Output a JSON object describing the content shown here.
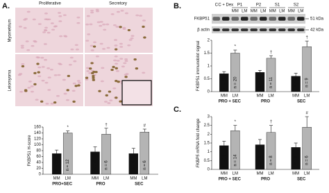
{
  "figure": {
    "a": {
      "label": "A.",
      "columns": [
        "Proliferative",
        "Secretory"
      ],
      "rows": [
        "Myometrium",
        "Leiomyoma"
      ],
      "chart": {
        "type": "bar",
        "y_label": "FKBP51 H-score",
        "groups": [
          "PRO+SEC",
          "PRO",
          "SEC"
        ],
        "categories": [
          "MM",
          "LM",
          "MM",
          "LM",
          "MM",
          "LM"
        ],
        "values": [
          70,
          140,
          76,
          136,
          70,
          143
        ],
        "errors": [
          12,
          7,
          17,
          20,
          18,
          10
        ],
        "n_labels": [
          "n = 12",
          "n = 12",
          "n = 6",
          "n = 6",
          "n = 6",
          "n = 6"
        ],
        "markers": [
          "*",
          "†",
          "#"
        ],
        "colors": [
          "#111111",
          "#b4b4b4"
        ],
        "ylim": [
          0,
          160
        ],
        "yticks": [
          0,
          20,
          40,
          60,
          80,
          100,
          120,
          140,
          160
        ]
      }
    },
    "b": {
      "label": "B.",
      "blot": {
        "lanes": [
          "C",
          "C + Dex",
          "P1",
          "P2",
          "S1",
          "S2"
        ],
        "sub_lanes": [
          "MM",
          "LM"
        ],
        "rows": [
          "FKBP51",
          "β actin"
        ],
        "sizes": [
          "51 kDa",
          "42 kDa"
        ]
      },
      "chart": {
        "type": "bar",
        "y_label": "FKBP51 immunoblot signal",
        "groups": [
          "PRO + SEC",
          "PRO",
          "SEC"
        ],
        "categories": [
          "MM",
          "LM",
          "MM",
          "LM",
          "MM",
          "LM"
        ],
        "values": [
          0.7,
          1.5,
          0.75,
          1.3,
          0.6,
          1.75
        ],
        "errors": [
          0.08,
          0.12,
          0.08,
          0.1,
          0.12,
          0.22
        ],
        "n_labels": [
          "n = 20",
          "n = 20",
          "n = 11",
          "n = 11",
          "n = 9",
          "n = 9"
        ],
        "markers": [
          "*",
          "†",
          "†"
        ],
        "colors": [
          "#111111",
          "#b4b4b4"
        ],
        "ylim": [
          0,
          2
        ],
        "yticks": [
          0,
          0.5,
          1,
          1.5,
          2
        ]
      }
    },
    "c": {
      "label": "C.",
      "chart": {
        "type": "bar",
        "y_label_gene": "FKBP5",
        "y_label": " mRNA fold change",
        "groups": [
          "PRO + SEC",
          "PRO",
          "SEC"
        ],
        "categories": [
          "MM",
          "LM",
          "MM",
          "LM",
          "MM",
          "LM"
        ],
        "values": [
          1.35,
          2.2,
          1.4,
          2.1,
          1.25,
          2.4
        ],
        "errors": [
          0.25,
          0.3,
          0.3,
          0.4,
          0.25,
          0.6
        ],
        "n_labels": [
          "n = 14",
          "n = 14",
          "n = 8",
          "n = 8",
          "n = 6",
          "n = 6"
        ],
        "markers": [
          "*",
          "†",
          "#"
        ],
        "colors": [
          "#111111",
          "#b4b4b4"
        ],
        "ylim": [
          0,
          3
        ],
        "yticks": [
          0,
          0.5,
          1,
          1.5,
          2,
          2.5,
          3
        ]
      }
    }
  }
}
